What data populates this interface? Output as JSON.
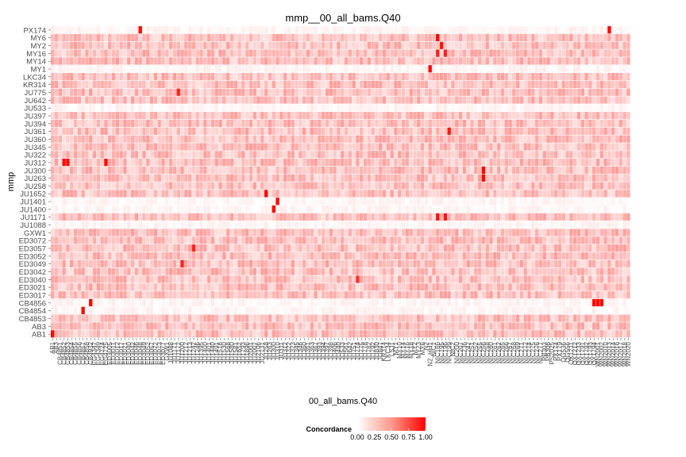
{
  "chart_data": {
    "type": "heatmap",
    "title": "mmp__00_all_bams.Q40",
    "xlabel": "00_all_bams.Q40",
    "ylabel": "mmp",
    "rows": [
      "PX174",
      "MY6",
      "MY2",
      "MY16",
      "MY14",
      "MY1",
      "LKC34",
      "KR314",
      "JU775",
      "JU642",
      "JU533",
      "JU397",
      "JU394",
      "JU361",
      "JU360",
      "JU345",
      "JU322",
      "JU312",
      "JU300",
      "JU263",
      "JU258",
      "JU1652",
      "JU1401",
      "JU1400",
      "JU1171",
      "JU1088",
      "GXW1",
      "ED3072",
      "ED3057",
      "ED3052",
      "ED3049",
      "ED3042",
      "ED3040",
      "ED3021",
      "ED3017",
      "CB4856",
      "CB4854",
      "CB4853",
      "AB3",
      "AB1"
    ],
    "column_count": 152,
    "legend": {
      "title": "Concordance",
      "ticks": [
        "0.00",
        "0.25",
        "0.50",
        "0.75",
        "1.00"
      ],
      "low_color": "#ffffff",
      "high_color": "#ff0000",
      "placement": "bottom"
    },
    "value_range": [
      0,
      1
    ],
    "tiles": [
      {
        "row": "AB1",
        "col": 0,
        "value": 1.0
      },
      {
        "row": "PX174",
        "col": 23,
        "value": 1.0
      },
      {
        "row": "PX174",
        "col": 146,
        "value": 1.0
      },
      {
        "row": "MY6",
        "col": 101,
        "value": 1.0
      },
      {
        "row": "MY2",
        "col": 102,
        "value": 0.95
      },
      {
        "row": "MY16",
        "col": 101,
        "value": 0.9
      },
      {
        "row": "MY16",
        "col": 103,
        "value": 0.9
      },
      {
        "row": "MY1",
        "col": 99,
        "value": 1.0
      },
      {
        "row": "JU1400",
        "col": 58,
        "value": 1.0
      },
      {
        "row": "JU1401",
        "col": 59,
        "value": 1.0
      },
      {
        "row": "JU1652",
        "col": 56,
        "value": 1.0
      },
      {
        "row": "JU1171",
        "col": 101,
        "value": 0.95
      },
      {
        "row": "JU1171",
        "col": 103,
        "value": 0.95
      },
      {
        "row": "CB4856",
        "col": 10,
        "value": 1.0
      },
      {
        "row": "CB4856",
        "col": 142,
        "value": 1.0
      },
      {
        "row": "CB4856",
        "col": 143,
        "value": 1.0
      },
      {
        "row": "CB4856",
        "col": 144,
        "value": 1.0
      },
      {
        "row": "CB4854",
        "col": 8,
        "value": 1.0
      },
      {
        "row": "JU312",
        "col": 3,
        "value": 1.0
      },
      {
        "row": "JU312",
        "col": 4,
        "value": 1.0
      },
      {
        "row": "JU312",
        "col": 14,
        "value": 1.0
      },
      {
        "row": "JU300",
        "col": 113,
        "value": 1.0
      },
      {
        "row": "JU263",
        "col": 113,
        "value": 1.0
      },
      {
        "row": "ED3049",
        "col": 34,
        "value": 0.9
      },
      {
        "row": "ED3040",
        "col": 80,
        "value": 0.85
      },
      {
        "row": "ED3057",
        "col": 37,
        "value": 0.9
      },
      {
        "row": "JU775",
        "col": 33,
        "value": 0.9
      },
      {
        "row": "JU361",
        "col": 104,
        "value": 0.95
      }
    ],
    "x_tick_labels": [
      "AB1",
      "AB3",
      "CB4851",
      "CB4852",
      "CB4853",
      "CB4854",
      "CB4855",
      "CB4856",
      "CB4857",
      "CB4858",
      "CB4932",
      "EG4347",
      "EG4349",
      "EG4724",
      "EG4725",
      "ED3005",
      "ED3011",
      "ED3012",
      "ED3017",
      "ED3021",
      "ED3040",
      "ED3042",
      "ED3046",
      "ED3048",
      "ED3049",
      "ED3052",
      "ED3057",
      "ED3072",
      "ED3073",
      "ED3077",
      "GXW1",
      "JU1088",
      "JU1171",
      "JU1172",
      "JU1200",
      "JU1212",
      "JU1213",
      "JU1242",
      "JU1246",
      "JU1395",
      "JU1400",
      "JU1401",
      "JU1440",
      "JU1491",
      "JU1516",
      "JU1530",
      "JU1568",
      "JU1580",
      "JU1581",
      "JU1652",
      "JU1793",
      "JU1896",
      "JU2001",
      "JU2007",
      "JU2106",
      "JU2131",
      "JU258",
      "JU263",
      "JU300",
      "JU310",
      "JU311",
      "JU312",
      "JU322",
      "JU323",
      "JU345",
      "JU346",
      "JU360",
      "JU361",
      "JU363",
      "JU367",
      "JU393",
      "JU394",
      "JU397",
      "JU398",
      "JU406",
      "JU440",
      "JU533",
      "JU561",
      "JU642",
      "JU751",
      "JU774",
      "JU775",
      "JU778",
      "JU782",
      "JU792",
      "JU830",
      "JU847",
      "KR314",
      "LKC34",
      "LSJ1",
      "MY1",
      "MY10",
      "MY14",
      "MY16",
      "MY18",
      "MY2",
      "MY23",
      "MY6",
      "N2",
      "N2_HH1",
      "NIC1",
      "NIC166",
      "NIC195",
      "NIC196",
      "NIC199",
      "NIC2",
      "NIC200",
      "NIC207",
      "NIC236",
      "NIC242",
      "NIC251",
      "NIC252",
      "NIC255",
      "NIC256",
      "NIC258",
      "NIC260",
      "NIC261",
      "NIC262",
      "NIC265",
      "NIC266",
      "NIC267",
      "NIC268",
      "NIC269",
      "NIC271",
      "NIC272",
      "NIC274",
      "NIC275",
      "NIC276",
      "NIC277",
      "PB303",
      "PB306",
      "PS2025",
      "PX174",
      "PX179",
      "QG536",
      "QG556",
      "QX1211",
      "QX1212",
      "QX1233",
      "QX1791",
      "QX1792",
      "QX1793",
      "QX1794",
      "WN2001",
      "WN2002",
      "WN2010",
      "WN2013",
      "WN2014",
      "WN2016",
      "WN2017",
      "WN2018",
      "WN2020"
    ]
  }
}
